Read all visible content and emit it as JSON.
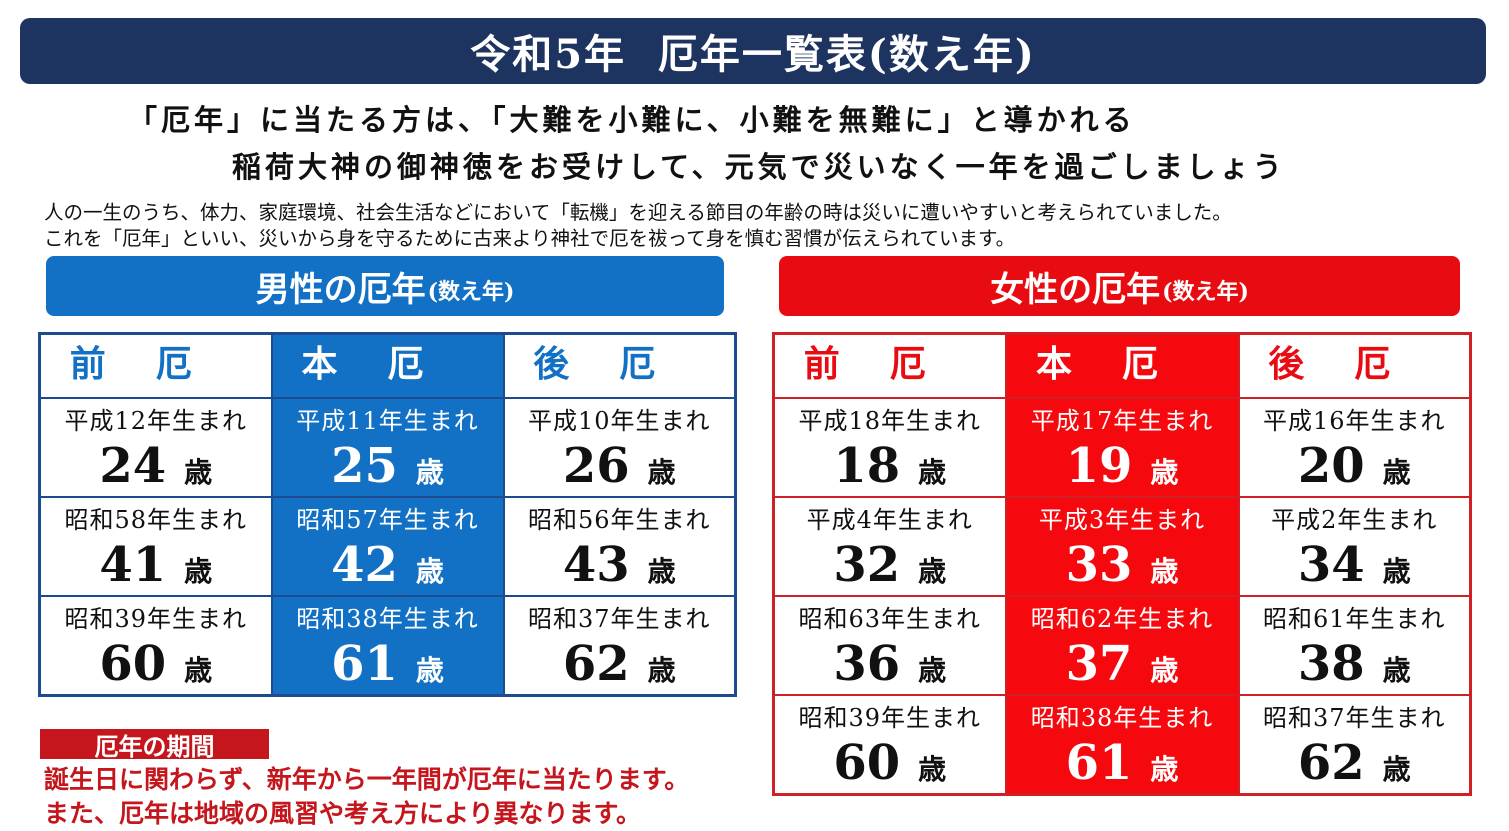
{
  "title": "令和5年  厄年一覧表(数え年)",
  "lead": [
    "「厄年」に当たる方は、「大難を小難に、小難を無難に」と導かれる",
    "稲荷大神の御神徳をお受けして、元気で災いなく一年を過ごしましょう"
  ],
  "description": [
    "人の一生のうち、体力、家庭環境、社会生活などにおいて「転機」を迎える節目の年齢の時は災いに遭いやすいと考えられていました。",
    "これを「厄年」といい、災いから身を守るために古来より神社で厄を祓って身を慎む習慣が伝えられています。"
  ],
  "columns": [
    "前厄",
    "本厄",
    "後厄"
  ],
  "age_unit": "歳",
  "men": {
    "heading": "男性の厄年",
    "heading_note": "(数え年)",
    "rows": [
      [
        {
          "born": "平成12年生まれ",
          "age": "24"
        },
        {
          "born": "平成11年生まれ",
          "age": "25"
        },
        {
          "born": "平成10年生まれ",
          "age": "26"
        }
      ],
      [
        {
          "born": "昭和58年生まれ",
          "age": "41"
        },
        {
          "born": "昭和57年生まれ",
          "age": "42"
        },
        {
          "born": "昭和56年生まれ",
          "age": "43"
        }
      ],
      [
        {
          "born": "昭和39年生まれ",
          "age": "60"
        },
        {
          "born": "昭和38年生まれ",
          "age": "61"
        },
        {
          "born": "昭和37年生まれ",
          "age": "62"
        }
      ]
    ]
  },
  "women": {
    "heading": "女性の厄年",
    "heading_note": "(数え年)",
    "rows": [
      [
        {
          "born": "平成18年生まれ",
          "age": "18"
        },
        {
          "born": "平成17年生まれ",
          "age": "19"
        },
        {
          "born": "平成16年生まれ",
          "age": "20"
        }
      ],
      [
        {
          "born": "平成4年生まれ",
          "age": "32"
        },
        {
          "born": "平成3年生まれ",
          "age": "33"
        },
        {
          "born": "平成2年生まれ",
          "age": "34"
        }
      ],
      [
        {
          "born": "昭和63年生まれ",
          "age": "36"
        },
        {
          "born": "昭和62年生まれ",
          "age": "37"
        },
        {
          "born": "昭和61年生まれ",
          "age": "38"
        }
      ],
      [
        {
          "born": "昭和39年生まれ",
          "age": "60"
        },
        {
          "born": "昭和38年生まれ",
          "age": "61"
        },
        {
          "born": "昭和37年生まれ",
          "age": "62"
        }
      ]
    ]
  },
  "period": {
    "label": "厄年の期間",
    "notes": [
      "誕生日に関わらず、新年から一年間が厄年に当たります。",
      "また、厄年は地域の風習や考え方により異なります。"
    ]
  },
  "colors": {
    "title_bg": "#1e3460",
    "men": "#1271c4",
    "women": "#e80c12",
    "note": "#c4161c"
  }
}
